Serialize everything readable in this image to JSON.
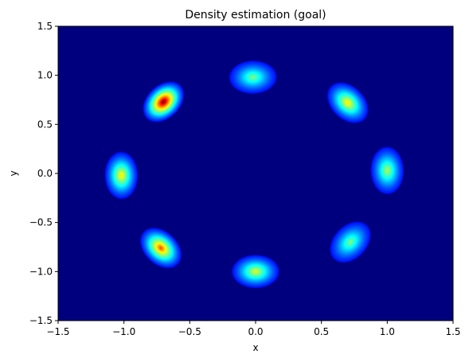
{
  "chart_data": {
    "type": "heatmap",
    "title": "Density estimation (goal)",
    "xlabel": "x",
    "ylabel": "y",
    "xlim": [
      -1.5,
      1.5
    ],
    "ylim": [
      -1.5,
      1.5
    ],
    "xticks": [
      -1.5,
      -1.0,
      -0.5,
      0.0,
      0.5,
      1.0,
      1.5
    ],
    "yticks": [
      -1.5,
      -1.0,
      -0.5,
      0.0,
      0.5,
      1.0,
      1.5
    ],
    "xtick_labels": [
      "−1.5",
      "−1.0",
      "−0.5",
      "0.0",
      "0.5",
      "1.0",
      "1.5"
    ],
    "ytick_labels": [
      "−1.5",
      "−1.0",
      "−0.5",
      "0.0",
      "0.5",
      "1.0",
      "1.5"
    ],
    "colormap": "jet",
    "background_color": "#00007f",
    "grid": false,
    "clusters": [
      {
        "x": 1.0,
        "y": 0.03,
        "peak": 0.55
      },
      {
        "x": 0.7,
        "y": 0.72,
        "peak": 0.65
      },
      {
        "x": -0.02,
        "y": 0.98,
        "peak": 0.5
      },
      {
        "x": -0.7,
        "y": 0.73,
        "peak": 1.0
      },
      {
        "x": -1.02,
        "y": -0.02,
        "peak": 0.65
      },
      {
        "x": -0.72,
        "y": -0.76,
        "peak": 0.8
      },
      {
        "x": 0.0,
        "y": -1.0,
        "peak": 0.6
      },
      {
        "x": 0.72,
        "y": -0.7,
        "peak": 0.5
      }
    ]
  }
}
